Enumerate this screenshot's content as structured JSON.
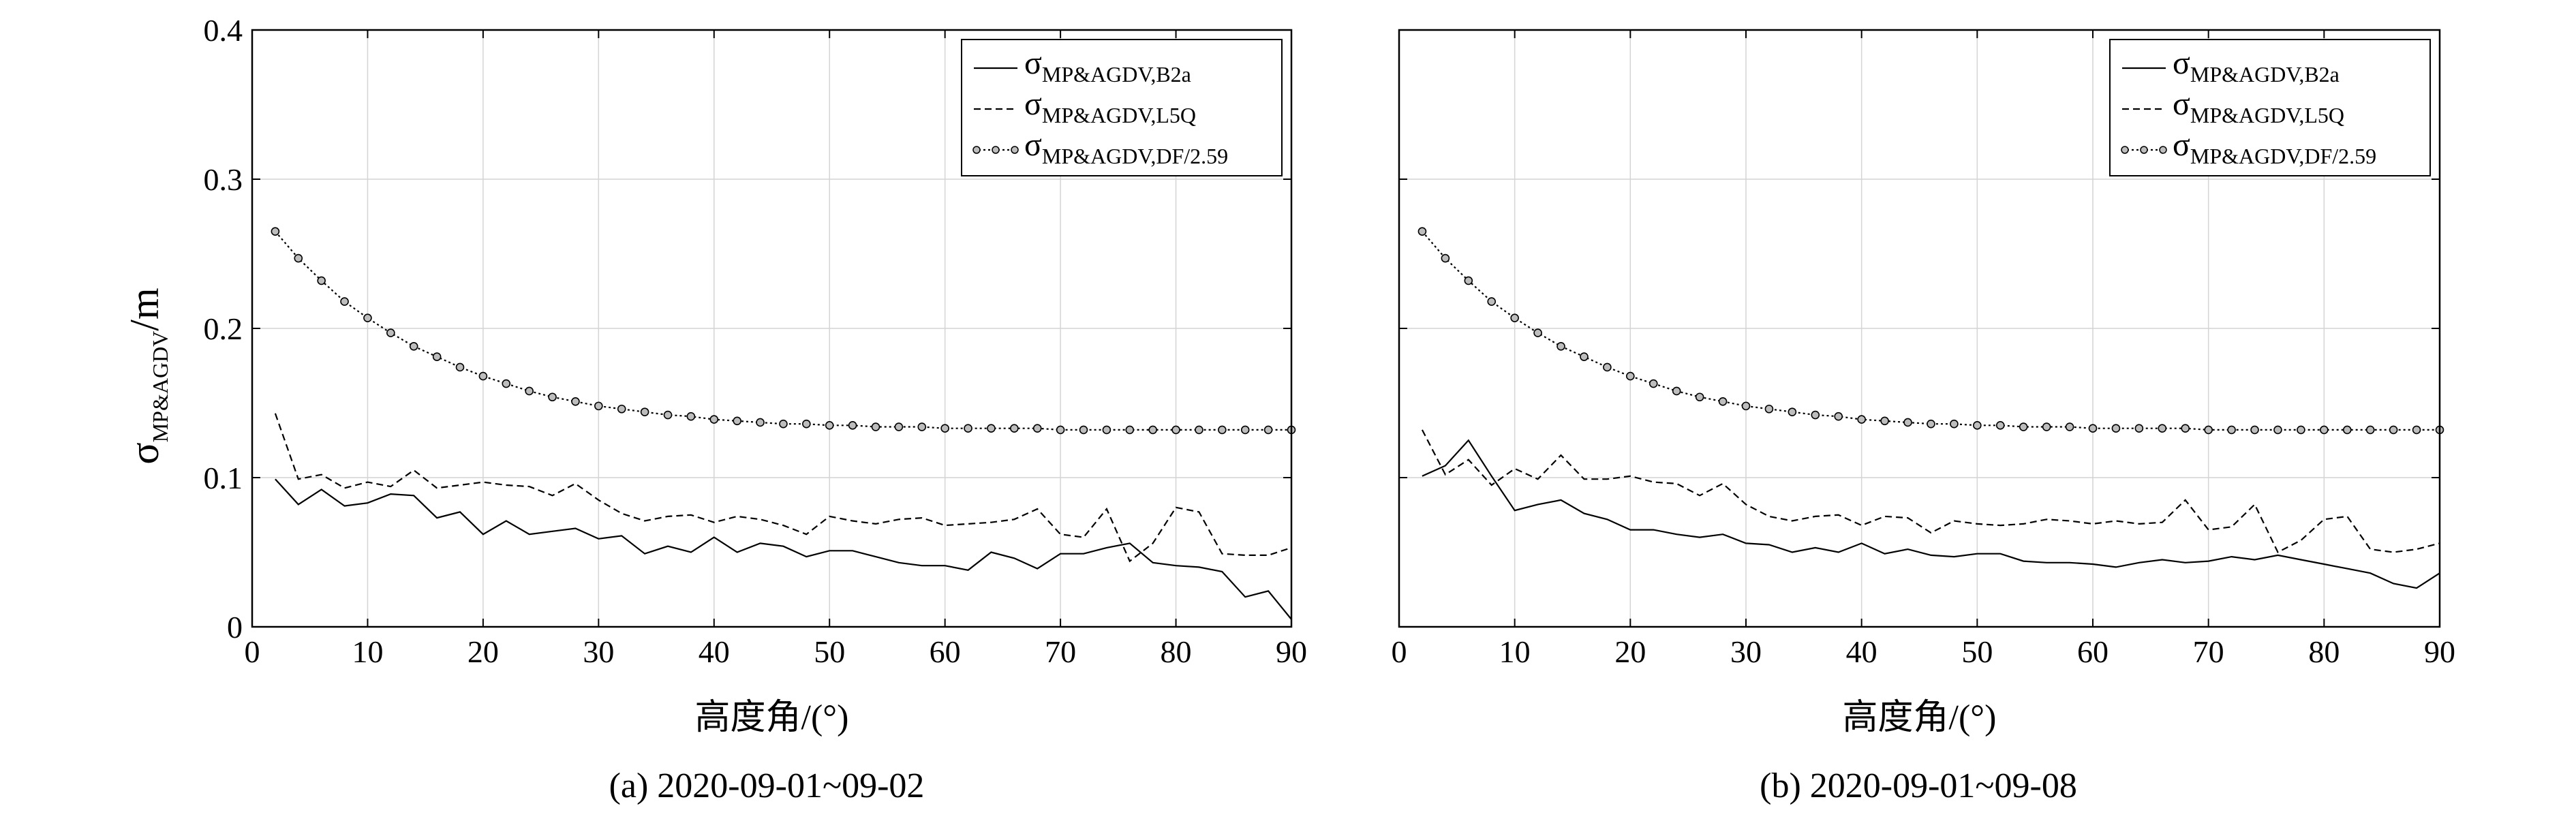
{
  "ylabel": {
    "symbol": "σ",
    "sub": "MP&AGDV",
    "unit": "/m"
  },
  "chart_data": [
    {
      "type": "line",
      "caption": "(a) 2020-09-01~09-02",
      "xlabel": "高度角/(°)",
      "xlim": [
        0,
        90
      ],
      "ylim": [
        0,
        0.4
      ],
      "xticks": [
        0,
        10,
        20,
        30,
        40,
        50,
        60,
        70,
        80,
        90
      ],
      "yticks": [
        0,
        0.1,
        0.2,
        0.3,
        0.4
      ],
      "ytick_labels": [
        "0",
        "0.1",
        "0.2",
        "0.3",
        "0.4"
      ],
      "grid": true,
      "legend_position": "top-right",
      "x": [
        2,
        4,
        6,
        8,
        10,
        12,
        14,
        16,
        18,
        20,
        22,
        24,
        26,
        28,
        30,
        32,
        34,
        36,
        38,
        40,
        42,
        44,
        46,
        48,
        50,
        52,
        54,
        56,
        58,
        60,
        62,
        64,
        66,
        68,
        70,
        72,
        74,
        76,
        78,
        80,
        82,
        84,
        86,
        88,
        90
      ],
      "series": [
        {
          "name_main": "σ",
          "name_sub": "MP&AGDV,B2a",
          "style": "solid",
          "values": [
            0.099,
            0.082,
            0.092,
            0.081,
            0.083,
            0.089,
            0.088,
            0.073,
            0.077,
            0.062,
            0.071,
            0.062,
            0.064,
            0.066,
            0.059,
            0.061,
            0.049,
            0.054,
            0.05,
            0.06,
            0.05,
            0.056,
            0.054,
            0.047,
            0.051,
            0.051,
            0.047,
            0.043,
            0.041,
            0.041,
            0.038,
            0.05,
            0.046,
            0.039,
            0.049,
            0.049,
            0.053,
            0.056,
            0.043,
            0.041,
            0.04,
            0.037,
            0.02,
            0.024,
            0.005
          ]
        },
        {
          "name_main": "σ",
          "name_sub": "MP&AGDV,L5Q",
          "style": "dashed",
          "values": [
            0.143,
            0.099,
            0.102,
            0.093,
            0.097,
            0.094,
            0.105,
            0.093,
            0.095,
            0.097,
            0.095,
            0.094,
            0.088,
            0.096,
            0.085,
            0.076,
            0.071,
            0.074,
            0.075,
            0.07,
            0.074,
            0.072,
            0.068,
            0.062,
            0.074,
            0.071,
            0.069,
            0.072,
            0.073,
            0.068,
            0.069,
            0.07,
            0.072,
            0.079,
            0.062,
            0.06,
            0.079,
            0.044,
            0.056,
            0.08,
            0.077,
            0.049,
            0.048,
            0.048,
            0.053
          ]
        },
        {
          "name_main": "σ",
          "name_sub": "MP&AGDV,DF/2.59",
          "style": "dotted-circles",
          "values": [
            0.265,
            0.247,
            0.232,
            0.218,
            0.207,
            0.197,
            0.188,
            0.181,
            0.174,
            0.168,
            0.163,
            0.158,
            0.154,
            0.151,
            0.148,
            0.146,
            0.144,
            0.142,
            0.141,
            0.139,
            0.138,
            0.137,
            0.136,
            0.136,
            0.135,
            0.135,
            0.134,
            0.134,
            0.134,
            0.133,
            0.133,
            0.133,
            0.133,
            0.133,
            0.132,
            0.132,
            0.132,
            0.132,
            0.132,
            0.132,
            0.132,
            0.132,
            0.132,
            0.132,
            0.132
          ]
        }
      ]
    },
    {
      "type": "line",
      "caption": "(b) 2020-09-01~09-08",
      "xlabel": "高度角/(°)",
      "xlim": [
        0,
        90
      ],
      "ylim": [
        0,
        0.4
      ],
      "xticks": [
        0,
        10,
        20,
        30,
        40,
        50,
        60,
        70,
        80,
        90
      ],
      "yticks": [
        0,
        0.1,
        0.2,
        0.3,
        0.4
      ],
      "ytick_labels": [],
      "grid": true,
      "legend_position": "top-right",
      "x": [
        2,
        4,
        6,
        8,
        10,
        12,
        14,
        16,
        18,
        20,
        22,
        24,
        26,
        28,
        30,
        32,
        34,
        36,
        38,
        40,
        42,
        44,
        46,
        48,
        50,
        52,
        54,
        56,
        58,
        60,
        62,
        64,
        66,
        68,
        70,
        72,
        74,
        76,
        78,
        80,
        82,
        84,
        86,
        88,
        90
      ],
      "series": [
        {
          "name_main": "σ",
          "name_sub": "MP&AGDV,B2a",
          "style": "solid",
          "values": [
            0.101,
            0.108,
            0.125,
            0.101,
            0.078,
            0.082,
            0.085,
            0.076,
            0.072,
            0.065,
            0.065,
            0.062,
            0.06,
            0.062,
            0.056,
            0.055,
            0.05,
            0.053,
            0.05,
            0.056,
            0.049,
            0.052,
            0.048,
            0.047,
            0.049,
            0.049,
            0.044,
            0.043,
            0.043,
            0.042,
            0.04,
            0.043,
            0.045,
            0.043,
            0.044,
            0.047,
            0.045,
            0.048,
            0.045,
            0.042,
            0.039,
            0.036,
            0.029,
            0.026,
            0.036
          ]
        },
        {
          "name_main": "σ",
          "name_sub": "MP&AGDV,L5Q",
          "style": "dashed",
          "values": [
            0.132,
            0.102,
            0.112,
            0.095,
            0.106,
            0.099,
            0.115,
            0.099,
            0.099,
            0.101,
            0.097,
            0.096,
            0.088,
            0.096,
            0.082,
            0.074,
            0.071,
            0.074,
            0.075,
            0.068,
            0.074,
            0.073,
            0.063,
            0.071,
            0.069,
            0.068,
            0.069,
            0.072,
            0.071,
            0.069,
            0.071,
            0.069,
            0.07,
            0.085,
            0.065,
            0.067,
            0.082,
            0.05,
            0.058,
            0.072,
            0.074,
            0.052,
            0.05,
            0.052,
            0.056
          ]
        },
        {
          "name_main": "σ",
          "name_sub": "MP&AGDV,DF/2.59",
          "style": "dotted-circles",
          "values": [
            0.265,
            0.247,
            0.232,
            0.218,
            0.207,
            0.197,
            0.188,
            0.181,
            0.174,
            0.168,
            0.163,
            0.158,
            0.154,
            0.151,
            0.148,
            0.146,
            0.144,
            0.142,
            0.141,
            0.139,
            0.138,
            0.137,
            0.136,
            0.136,
            0.135,
            0.135,
            0.134,
            0.134,
            0.134,
            0.133,
            0.133,
            0.133,
            0.133,
            0.133,
            0.132,
            0.132,
            0.132,
            0.132,
            0.132,
            0.132,
            0.132,
            0.132,
            0.132,
            0.132,
            0.132
          ]
        }
      ]
    }
  ]
}
